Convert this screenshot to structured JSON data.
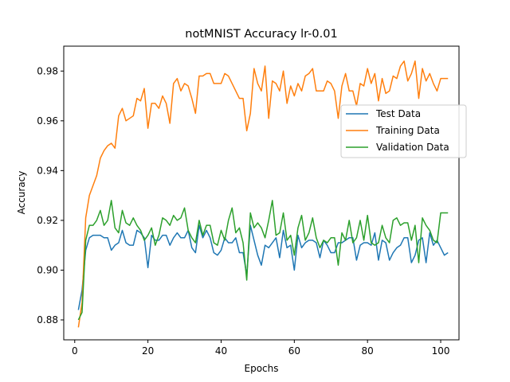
{
  "chart_data": {
    "type": "line",
    "title": "notMNIST Accuracy lr-0.01",
    "xlabel": "Epochs",
    "ylabel": "Accuracy",
    "xlim": [
      -3,
      105
    ],
    "ylim": [
      0.872,
      0.99
    ],
    "xticks": [
      0,
      20,
      40,
      60,
      80,
      100
    ],
    "yticks": [
      0.88,
      0.9,
      0.92,
      0.94,
      0.96,
      0.98
    ],
    "ytick_labels": [
      "0.88",
      "0.90",
      "0.92",
      "0.94",
      "0.96",
      "0.98"
    ],
    "grid": false,
    "legend_position": "center-right",
    "series": [
      {
        "name": "Test Data",
        "color": "#1f77b4",
        "values": [
          0.884,
          0.892,
          0.908,
          0.913,
          0.914,
          0.914,
          0.914,
          0.913,
          0.913,
          0.908,
          0.91,
          0.911,
          0.916,
          0.911,
          0.91,
          0.91,
          0.916,
          0.915,
          0.913,
          0.901,
          0.914,
          0.912,
          0.912,
          0.914,
          0.914,
          0.91,
          0.913,
          0.915,
          0.913,
          0.913,
          0.916,
          0.909,
          0.907,
          0.918,
          0.913,
          0.916,
          0.913,
          0.907,
          0.906,
          0.908,
          0.913,
          0.911,
          0.911,
          0.913,
          0.907,
          0.907,
          0.898,
          0.918,
          0.912,
          0.906,
          0.902,
          0.91,
          0.909,
          0.911,
          0.913,
          0.905,
          0.916,
          0.909,
          0.91,
          0.9,
          0.914,
          0.909,
          0.911,
          0.912,
          0.912,
          0.911,
          0.905,
          0.912,
          0.91,
          0.907,
          0.907,
          0.911,
          0.911,
          0.912,
          0.913,
          0.913,
          0.904,
          0.91,
          0.911,
          0.911,
          0.91,
          0.915,
          0.904,
          0.912,
          0.911,
          0.904,
          0.907,
          0.909,
          0.91,
          0.913,
          0.913,
          0.903,
          0.906,
          0.912,
          0.913,
          0.903,
          0.915,
          0.91,
          0.912,
          0.909,
          0.906,
          0.907
        ]
      },
      {
        "name": "Training Data",
        "color": "#ff7f0e",
        "values": [
          0.877,
          0.887,
          0.921,
          0.93,
          0.934,
          0.938,
          0.945,
          0.948,
          0.95,
          0.951,
          0.949,
          0.962,
          0.965,
          0.96,
          0.961,
          0.962,
          0.969,
          0.968,
          0.973,
          0.957,
          0.967,
          0.967,
          0.965,
          0.97,
          0.967,
          0.959,
          0.975,
          0.977,
          0.972,
          0.975,
          0.974,
          0.969,
          0.963,
          0.978,
          0.978,
          0.979,
          0.979,
          0.975,
          0.975,
          0.975,
          0.979,
          0.978,
          0.975,
          0.972,
          0.969,
          0.969,
          0.956,
          0.963,
          0.981,
          0.975,
          0.972,
          0.982,
          0.961,
          0.976,
          0.975,
          0.972,
          0.98,
          0.967,
          0.974,
          0.97,
          0.975,
          0.972,
          0.978,
          0.979,
          0.981,
          0.972,
          0.972,
          0.972,
          0.976,
          0.975,
          0.972,
          0.961,
          0.974,
          0.979,
          0.972,
          0.972,
          0.966,
          0.975,
          0.974,
          0.981,
          0.975,
          0.979,
          0.968,
          0.977,
          0.971,
          0.972,
          0.978,
          0.977,
          0.982,
          0.984,
          0.976,
          0.979,
          0.984,
          0.969,
          0.981,
          0.976,
          0.979,
          0.975,
          0.972,
          0.977,
          0.977,
          0.977
        ]
      },
      {
        "name": "Validation Data",
        "color": "#2ca02c",
        "values": [
          0.88,
          0.883,
          0.912,
          0.918,
          0.918,
          0.92,
          0.924,
          0.918,
          0.92,
          0.928,
          0.917,
          0.915,
          0.924,
          0.919,
          0.918,
          0.921,
          0.918,
          0.916,
          0.912,
          0.914,
          0.917,
          0.91,
          0.914,
          0.921,
          0.92,
          0.918,
          0.922,
          0.92,
          0.921,
          0.925,
          0.916,
          0.913,
          0.911,
          0.92,
          0.914,
          0.918,
          0.918,
          0.911,
          0.91,
          0.916,
          0.912,
          0.92,
          0.925,
          0.915,
          0.917,
          0.911,
          0.896,
          0.923,
          0.917,
          0.919,
          0.917,
          0.913,
          0.92,
          0.928,
          0.914,
          0.915,
          0.923,
          0.912,
          0.914,
          0.906,
          0.917,
          0.922,
          0.912,
          0.915,
          0.921,
          0.913,
          0.909,
          0.912,
          0.911,
          0.913,
          0.913,
          0.902,
          0.915,
          0.912,
          0.92,
          0.911,
          0.913,
          0.92,
          0.912,
          0.922,
          0.911,
          0.91,
          0.911,
          0.918,
          0.913,
          0.911,
          0.92,
          0.921,
          0.918,
          0.919,
          0.919,
          0.912,
          0.918,
          0.903,
          0.921,
          0.918,
          0.916,
          0.912,
          0.911,
          0.923,
          0.923,
          0.923
        ]
      }
    ]
  }
}
